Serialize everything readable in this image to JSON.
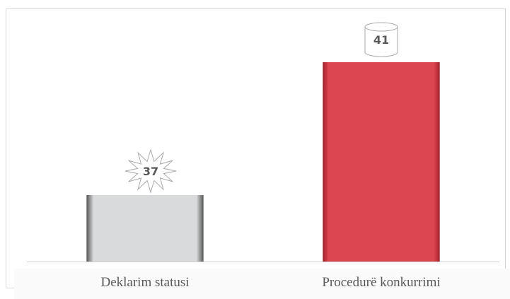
{
  "chart_data": {
    "type": "bar",
    "categories": [
      "Deklarim statusi",
      "Procedurë konkurrimi"
    ],
    "values": [
      37,
      41
    ],
    "colors": [
      "#d9dadc",
      "#dc4650"
    ],
    "ylim": [
      35,
      42
    ]
  }
}
